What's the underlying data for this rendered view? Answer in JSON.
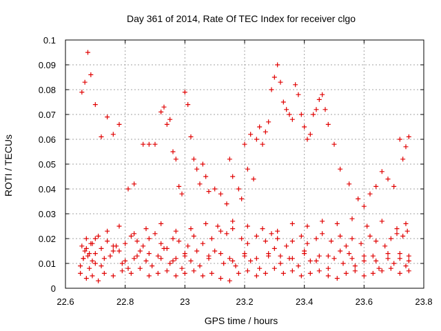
{
  "chart_data": {
    "type": "scatter",
    "title": "Day 361 of 2014, Rate Of TEC Index for receiver clgo",
    "xlabel": "GPS time / hours",
    "ylabel": "ROTI / TECUs",
    "xlim": [
      22.6,
      23.8
    ],
    "ylim": [
      0,
      0.1
    ],
    "grid": true,
    "marker": "+",
    "color": "#e00000",
    "xticks": [
      {
        "value": 22.6,
        "label": "22.6"
      },
      {
        "value": 22.8,
        "label": "22.8"
      },
      {
        "value": 23.0,
        "label": "23"
      },
      {
        "value": 23.2,
        "label": "23.2"
      },
      {
        "value": 23.4,
        "label": "23.4"
      },
      {
        "value": 23.6,
        "label": "23.6"
      },
      {
        "value": 23.8,
        "label": "23.8"
      }
    ],
    "yticks": [
      {
        "value": 0,
        "label": "0"
      },
      {
        "value": 0.01,
        "label": "0.01"
      },
      {
        "value": 0.02,
        "label": "0.02"
      },
      {
        "value": 0.03,
        "label": "0.03"
      },
      {
        "value": 0.04,
        "label": "0.04"
      },
      {
        "value": 0.05,
        "label": "0.05"
      },
      {
        "value": 0.06,
        "label": "0.06"
      },
      {
        "value": 0.07,
        "label": "0.07"
      },
      {
        "value": 0.08,
        "label": "0.08"
      },
      {
        "value": 0.09,
        "label": "0.09"
      },
      {
        "value": 0.1,
        "label": "0.1"
      }
    ],
    "series": [
      {
        "name": "ROTI",
        "x": [
          22.65,
          22.66,
          22.67,
          22.68,
          22.69,
          22.7,
          22.72,
          22.75,
          22.77,
          22.79,
          22.81,
          22.83,
          22.85,
          22.87,
          22.89,
          22.91,
          22.93,
          22.95,
          22.97,
          22.99,
          23.0,
          23.02,
          23.05,
          23.08,
          23.1,
          23.13,
          23.15,
          23.17,
          23.2,
          23.22,
          23.25,
          23.28,
          23.3,
          23.32,
          23.35,
          23.38,
          23.4,
          23.42,
          23.45,
          23.48,
          23.5,
          23.53,
          23.55,
          23.57,
          23.6,
          23.63,
          23.65,
          23.68,
          23.7,
          23.72,
          23.74,
          23.75,
          22.655,
          22.665,
          22.675,
          22.685,
          22.7,
          22.72,
          22.74,
          22.76,
          22.78,
          22.8,
          22.82,
          22.84,
          22.86,
          22.88,
          22.9,
          22.92,
          22.94,
          22.96,
          22.98,
          23.01,
          23.03,
          23.06,
          23.09,
          23.12,
          23.14,
          23.16,
          23.19,
          23.21,
          23.24,
          23.27,
          23.29,
          23.31,
          23.34,
          23.36,
          23.39,
          23.41,
          23.44,
          23.46,
          23.49,
          23.52,
          23.54,
          23.56,
          23.59,
          23.62,
          23.64,
          23.67,
          23.69,
          23.71,
          23.73,
          23.745,
          22.65,
          22.67,
          22.69,
          22.71,
          22.73,
          22.76,
          22.79,
          22.82,
          22.85,
          22.88,
          22.91,
          22.94,
          22.97,
          23.0,
          23.03,
          23.06,
          23.09,
          23.12,
          23.15,
          23.18,
          23.21,
          23.24,
          23.27,
          23.3,
          23.33,
          23.36,
          23.39,
          23.42,
          23.45,
          23.48,
          23.51,
          23.54,
          23.57,
          23.6,
          23.63,
          23.66,
          23.69,
          23.72,
          23.75,
          22.66,
          22.68,
          22.7,
          22.73,
          22.76,
          22.8,
          22.84,
          22.88,
          22.92,
          22.96,
          23.0,
          23.04,
          23.08,
          23.12,
          23.16,
          23.2,
          23.24,
          23.28,
          23.32,
          23.36,
          23.4,
          23.44,
          23.48,
          23.52,
          23.56,
          23.6,
          23.64,
          23.68,
          23.72,
          23.75,
          22.67,
          22.69,
          22.71,
          22.74,
          22.78,
          22.83,
          22.87,
          22.92,
          22.97,
          23.02,
          23.07,
          23.11,
          23.16,
          23.21,
          23.26,
          23.31,
          23.36,
          23.41,
          23.46,
          23.51,
          23.56,
          23.61,
          23.66,
          23.71,
          23.74,
          22.655,
          22.665,
          22.675,
          22.685,
          22.7,
          22.72,
          22.74,
          22.76,
          22.78,
          22.81,
          22.83,
          22.86,
          22.88,
          22.9,
          22.92,
          22.93,
          22.94,
          22.95,
          22.96,
          22.97,
          22.98,
          22.99,
          23.0,
          23.01,
          23.02,
          23.03,
          23.04,
          23.05,
          23.06,
          23.07,
          23.08,
          23.1,
          23.12,
          23.14,
          23.15,
          23.16,
          23.18,
          23.19,
          23.2,
          23.21,
          23.22,
          23.23,
          23.24,
          23.25,
          23.26,
          23.27,
          23.28,
          23.29,
          23.3,
          23.31,
          23.32,
          23.33,
          23.34,
          23.35,
          23.36,
          23.37,
          23.38,
          23.39,
          23.4,
          23.41,
          23.42,
          23.43,
          23.44,
          23.45,
          23.46,
          23.47,
          23.48,
          23.5,
          23.52,
          23.55,
          23.58,
          23.6,
          23.62,
          23.64,
          23.66,
          23.68,
          23.7,
          23.72,
          23.73,
          23.74,
          23.75
        ],
        "y": [
          0.009,
          0.012,
          0.016,
          0.008,
          0.011,
          0.014,
          0.009,
          0.013,
          0.017,
          0.01,
          0.008,
          0.012,
          0.015,
          0.011,
          0.009,
          0.013,
          0.016,
          0.01,
          0.012,
          0.008,
          0.014,
          0.011,
          0.009,
          0.013,
          0.015,
          0.01,
          0.012,
          0.009,
          0.014,
          0.011,
          0.008,
          0.013,
          0.016,
          0.01,
          0.012,
          0.009,
          0.015,
          0.011,
          0.013,
          0.008,
          0.012,
          0.01,
          0.014,
          0.009,
          0.011,
          0.013,
          0.008,
          0.012,
          0.01,
          0.014,
          0.009,
          0.011,
          0.017,
          0.015,
          0.013,
          0.018,
          0.02,
          0.016,
          0.019,
          0.017,
          0.015,
          0.018,
          0.021,
          0.019,
          0.017,
          0.02,
          0.022,
          0.018,
          0.016,
          0.02,
          0.019,
          0.017,
          0.021,
          0.018,
          0.02,
          0.023,
          0.022,
          0.024,
          0.02,
          0.018,
          0.021,
          0.019,
          0.022,
          0.02,
          0.017,
          0.019,
          0.021,
          0.018,
          0.02,
          0.022,
          0.019,
          0.021,
          0.017,
          0.02,
          0.018,
          0.021,
          0.019,
          0.017,
          0.02,
          0.022,
          0.021,
          0.023,
          0.006,
          0.004,
          0.005,
          0.003,
          0.006,
          0.005,
          0.007,
          0.006,
          0.008,
          0.005,
          0.006,
          0.007,
          0.005,
          0.006,
          0.007,
          0.005,
          0.006,
          0.004,
          0.003,
          0.006,
          0.007,
          0.005,
          0.006,
          0.008,
          0.006,
          0.007,
          0.005,
          0.006,
          0.007,
          0.005,
          0.004,
          0.006,
          0.007,
          0.005,
          0.006,
          0.007,
          0.008,
          0.006,
          0.007,
          0.012,
          0.014,
          0.01,
          0.012,
          0.015,
          0.011,
          0.013,
          0.014,
          0.012,
          0.011,
          0.013,
          0.015,
          0.012,
          0.014,
          0.011,
          0.013,
          0.012,
          0.014,
          0.013,
          0.012,
          0.014,
          0.011,
          0.013,
          0.015,
          0.012,
          0.013,
          0.011,
          0.014,
          0.012,
          0.013,
          0.02,
          0.018,
          0.021,
          0.023,
          0.025,
          0.022,
          0.024,
          0.026,
          0.023,
          0.024,
          0.026,
          0.025,
          0.027,
          0.025,
          0.024,
          0.023,
          0.026,
          0.025,
          0.027,
          0.026,
          0.028,
          0.025,
          0.027,
          0.024,
          0.026,
          0.079,
          0.083,
          0.095,
          0.086,
          0.074,
          0.061,
          0.069,
          0.062,
          0.066,
          0.04,
          0.042,
          0.058,
          0.058,
          0.058,
          0.071,
          0.073,
          0.066,
          0.068,
          0.055,
          0.052,
          0.041,
          0.038,
          0.079,
          0.074,
          0.061,
          0.052,
          0.048,
          0.042,
          0.05,
          0.045,
          0.039,
          0.04,
          0.038,
          0.034,
          0.052,
          0.045,
          0.04,
          0.036,
          0.058,
          0.048,
          0.062,
          0.044,
          0.06,
          0.065,
          0.058,
          0.063,
          0.067,
          0.08,
          0.085,
          0.09,
          0.083,
          0.075,
          0.072,
          0.07,
          0.068,
          0.082,
          0.078,
          0.07,
          0.065,
          0.06,
          0.062,
          0.07,
          0.072,
          0.076,
          0.078,
          0.072,
          0.066,
          0.058,
          0.048,
          0.042,
          0.036,
          0.033,
          0.038,
          0.041,
          0.047,
          0.044,
          0.041,
          0.06,
          0.052,
          0.057,
          0.061
        ]
      }
    ]
  }
}
